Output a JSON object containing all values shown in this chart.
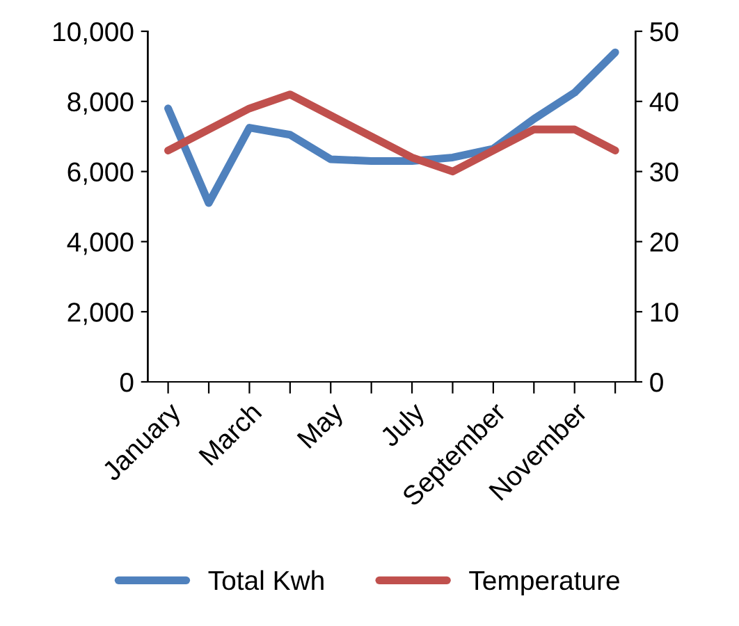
{
  "chart_data": {
    "type": "line",
    "categories": [
      "January",
      null,
      "March",
      null,
      "May",
      null,
      "July",
      null,
      "September",
      null,
      "November",
      null
    ],
    "series": [
      {
        "name": "Total Kwh",
        "color": "#4f81bd",
        "values": [
          7800,
          5100,
          7250,
          7050,
          6350,
          6300,
          6300,
          6400,
          6650,
          7500,
          8250,
          9400
        ]
      },
      {
        "name": "Temperature",
        "color": "#c0504d",
        "axis": "y2",
        "values": [
          33,
          36,
          39,
          41,
          38,
          35,
          32,
          30,
          33,
          36,
          36,
          33
        ]
      }
    ],
    "ylim": [
      0,
      10000
    ],
    "yticks": [
      {
        "value": 0,
        "label": "0"
      },
      {
        "value": 2000,
        "label": "2,000"
      },
      {
        "value": 4000,
        "label": "4,000"
      },
      {
        "value": 6000,
        "label": "6,000"
      },
      {
        "value": 8000,
        "label": "8,000"
      },
      {
        "value": 10000,
        "label": "10,000"
      }
    ],
    "y2lim": [
      0,
      50
    ],
    "y2ticks": [
      0,
      10,
      20,
      30,
      40,
      50
    ],
    "grid": false,
    "legend": "bottom",
    "marker": "none",
    "line_style": "solid"
  }
}
